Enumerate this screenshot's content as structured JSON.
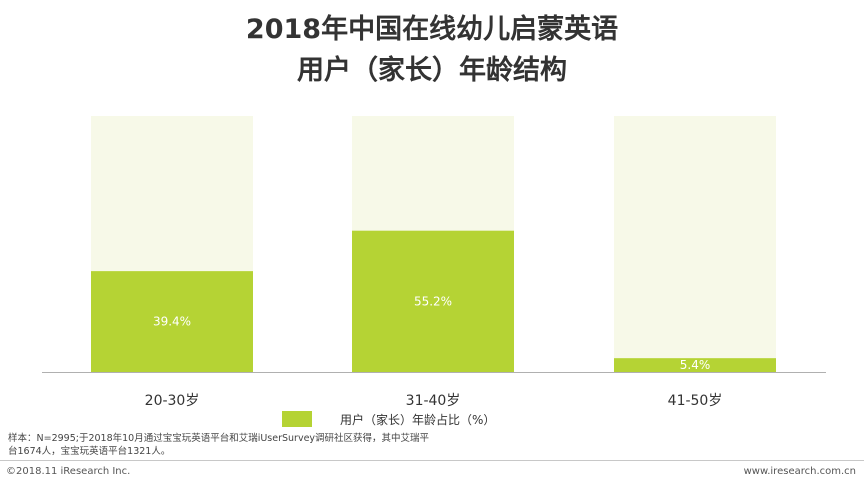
{
  "title_line1": "2018年中国在线幼儿启蒙英语",
  "title_line2": "用户（家长）年龄结构",
  "chart_data": {
    "type": "bar",
    "categories": [
      "20-30岁",
      "31-40岁",
      "41-50岁"
    ],
    "series": [
      {
        "name": "用户（家长）年龄占比（%）",
        "values": [
          39.4,
          55.2,
          5.4
        ]
      }
    ],
    "value_labels": [
      "39.4%",
      "55.2%",
      "5.4%"
    ],
    "ylim": [
      0,
      100
    ],
    "stacked_background": true,
    "grid": false,
    "legend_position": "bottom",
    "colors": {
      "bar": "#b5d334",
      "background": "#f7f9e8",
      "axis": "#b0b0b0"
    }
  },
  "legend_label": "用户（家长）年龄占比（%）",
  "note": "样本：N=2995;于2018年10月通过宝宝玩英语平台和艾瑞iUserSurvey调研社区获得，其中艾瑞平台1674人，宝宝玩英语平台1321人。",
  "copyright": "©2018.11 iResearch Inc.",
  "site": "www.iresearch.com.cn"
}
